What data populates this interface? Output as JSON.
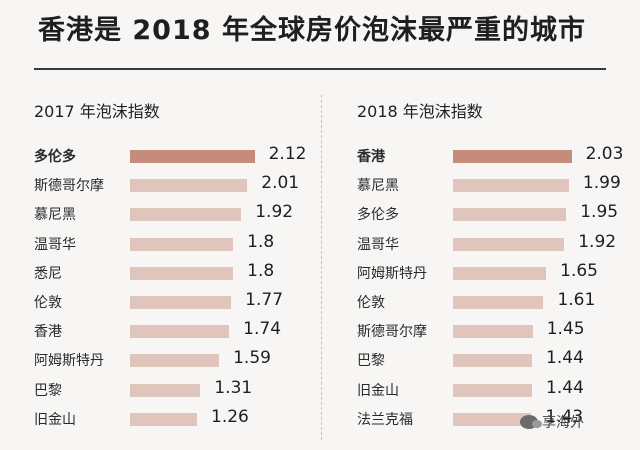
{
  "header": {
    "title": "香港是 2018 年全球房价泡沫最严重的城市"
  },
  "watermark": {
    "text": "享海外"
  },
  "chart_data": [
    {
      "type": "bar",
      "title": "2017 年泡沫指数",
      "orientation": "horizontal",
      "categories": [
        "多伦多",
        "斯德哥尔摩",
        "慕尼黑",
        "温哥华",
        "悉尼",
        "伦敦",
        "香港",
        "阿姆斯特丹",
        "巴黎",
        "旧金山"
      ],
      "values": [
        2.12,
        2.01,
        1.92,
        1.8,
        1.8,
        1.77,
        1.74,
        1.59,
        1.31,
        1.26
      ],
      "value_labels": [
        "2.12",
        "2.01",
        "1.92",
        "1.8",
        "1.8",
        "1.77",
        "1.74",
        "1.59",
        "1.31",
        "1.26"
      ],
      "highlight_color": "#c58c7c",
      "bar_color": "#dfc5bc"
    },
    {
      "type": "bar",
      "title": "2018 年泡沫指数",
      "orientation": "horizontal",
      "categories": [
        "香港",
        "慕尼黑",
        "多伦多",
        "温哥华",
        "阿姆斯特丹",
        "伦敦",
        "斯德哥尔摩",
        "巴黎",
        "旧金山",
        "法兰克福"
      ],
      "values": [
        2.03,
        1.99,
        1.95,
        1.92,
        1.65,
        1.61,
        1.45,
        1.44,
        1.44,
        1.43
      ],
      "value_labels": [
        "2.03",
        "1.99",
        "1.95",
        "1.92",
        "1.65",
        "1.61",
        "1.45",
        "1.44",
        "1.44",
        "1.43"
      ],
      "highlight_color": "#c58c7c",
      "bar_color": "#dfc5bc"
    }
  ]
}
